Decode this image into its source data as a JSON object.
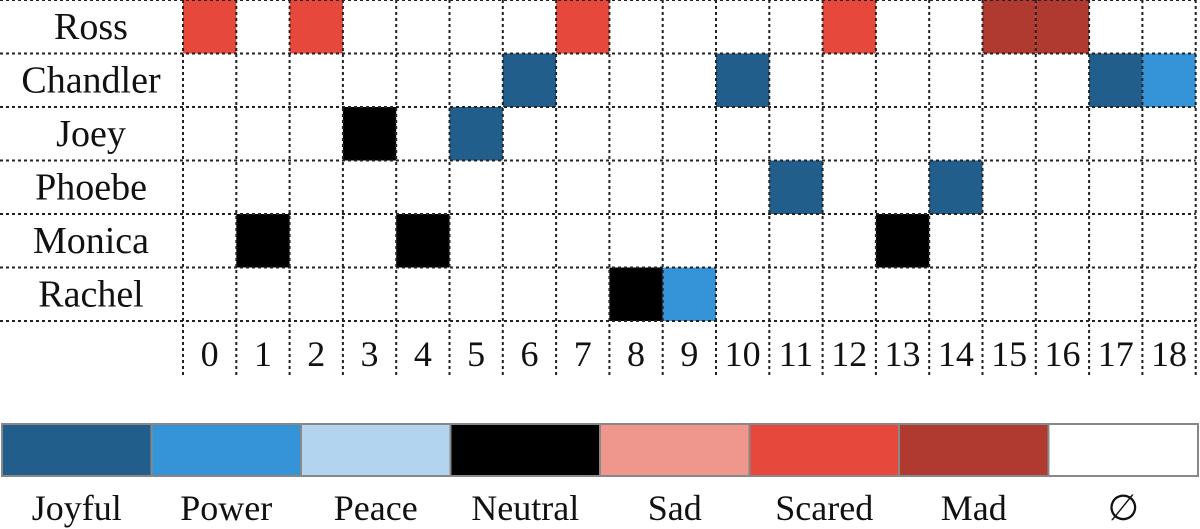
{
  "chart_data": {
    "type": "heatmap",
    "rows": [
      "Ross",
      "Chandler",
      "Joey",
      "Phoebe",
      "Monica",
      "Rachel"
    ],
    "columns": [
      "0",
      "1",
      "2",
      "3",
      "4",
      "5",
      "6",
      "7",
      "8",
      "9",
      "10",
      "11",
      "12",
      "13",
      "14",
      "15",
      "16",
      "17",
      "18"
    ],
    "cells": [
      [
        "Scared",
        null,
        "Scared",
        null,
        null,
        null,
        null,
        "Scared",
        null,
        null,
        null,
        null,
        "Scared",
        null,
        null,
        "Mad",
        "Mad",
        null,
        null
      ],
      [
        null,
        null,
        null,
        null,
        null,
        null,
        "Joyful",
        null,
        null,
        null,
        "Joyful",
        null,
        null,
        null,
        null,
        null,
        null,
        "Joyful",
        "Power"
      ],
      [
        null,
        null,
        null,
        "Neutral",
        null,
        "Joyful",
        null,
        null,
        null,
        null,
        null,
        null,
        null,
        null,
        null,
        null,
        null,
        null,
        null
      ],
      [
        null,
        null,
        null,
        null,
        null,
        null,
        null,
        null,
        null,
        null,
        null,
        "Joyful",
        null,
        null,
        "Joyful",
        null,
        null,
        null,
        null
      ],
      [
        null,
        "Neutral",
        null,
        null,
        "Neutral",
        null,
        null,
        null,
        null,
        null,
        null,
        null,
        null,
        "Neutral",
        null,
        null,
        null,
        null,
        null
      ],
      [
        null,
        null,
        null,
        null,
        null,
        null,
        null,
        null,
        "Neutral",
        "Power",
        null,
        null,
        null,
        null,
        null,
        null,
        null,
        null,
        null
      ]
    ],
    "legend": [
      {
        "label": "Joyful",
        "color": "#225e8c"
      },
      {
        "label": "Power",
        "color": "#3593d8"
      },
      {
        "label": "Peace",
        "color": "#b3d4ef"
      },
      {
        "label": "Neutral",
        "color": "#000000"
      },
      {
        "label": "Sad",
        "color": "#ef978c"
      },
      {
        "label": "Scared",
        "color": "#e6493b"
      },
      {
        "label": "Mad",
        "color": "#b03a2f"
      },
      {
        "label": "∅",
        "color": "#ffffff"
      }
    ],
    "grid": true
  }
}
